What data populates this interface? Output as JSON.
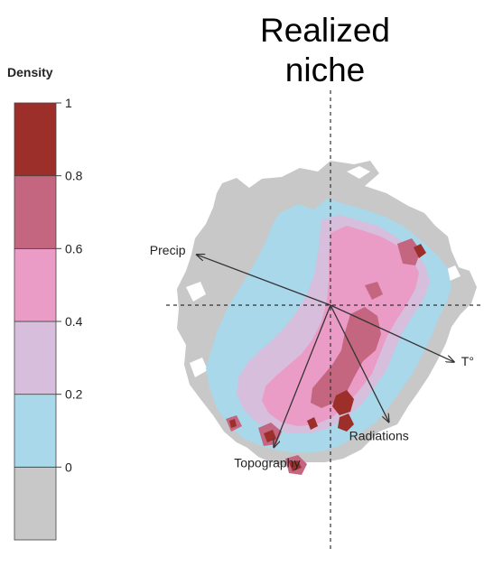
{
  "chart_data": {
    "type": "heatmap",
    "title_lines": [
      "Realized",
      "niche"
    ],
    "legend": {
      "title": "Density",
      "bands": [
        {
          "from": null,
          "to": 0,
          "color": "#c8c8c8"
        },
        {
          "from": 0,
          "to": 0.2,
          "color": "#a8d8ea"
        },
        {
          "from": 0.2,
          "to": 0.4,
          "color": "#d6bedc"
        },
        {
          "from": 0.4,
          "to": 0.6,
          "color": "#ea9cc6"
        },
        {
          "from": 0.6,
          "to": 0.8,
          "color": "#c46680"
        },
        {
          "from": 0.8,
          "to": 1,
          "color": "#9c2f2a"
        }
      ],
      "tick_labels": [
        "0",
        "0.2",
        "0.4",
        "0.6",
        "0.8",
        "1"
      ]
    },
    "loadings": [
      {
        "label": "Precip",
        "x": -0.78,
        "y": 0.32
      },
      {
        "label": "T°",
        "x": 0.72,
        "y": -0.36
      },
      {
        "label": "Radiations",
        "x": 0.34,
        "y": -0.74
      },
      {
        "label": "Topography",
        "x": -0.33,
        "y": -0.9
      }
    ],
    "axes": {
      "x_origin": 0,
      "y_origin": 0,
      "dashed": true
    }
  }
}
